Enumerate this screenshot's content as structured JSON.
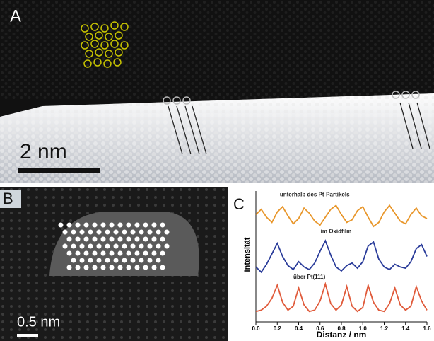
{
  "panels": {
    "a": {
      "label": "A",
      "scale_bar": "2 nm"
    },
    "b": {
      "label": "B",
      "scale_bar": "0.5 nm"
    }
  },
  "chart_data": {
    "type": "line",
    "panel_label": "C",
    "xlabel": "Distanz / nm",
    "ylabel": "Intensität",
    "x": [
      0,
      0.05,
      0.1,
      0.15,
      0.2,
      0.25,
      0.3,
      0.35,
      0.4,
      0.45,
      0.5,
      0.55,
      0.6,
      0.65,
      0.7,
      0.75,
      0.8,
      0.85,
      0.9,
      0.95,
      1.0,
      1.05,
      1.1,
      1.15,
      1.2,
      1.25,
      1.3,
      1.35,
      1.4,
      1.45,
      1.5,
      1.55,
      1.6
    ],
    "xlim": [
      0,
      1.6
    ],
    "xticks": [
      {
        "value": 0,
        "label": "0.0"
      },
      0.2,
      0.4,
      0.6,
      0.8,
      {
        "value": 1,
        "label": "1.0"
      },
      1.2,
      1.4,
      1.6
    ],
    "ylim": [
      0,
      10
    ],
    "series": [
      {
        "name": "unterhalb des Pt-Partikels",
        "color": "#e8962a",
        "values": [
          8.2,
          8.6,
          8.0,
          7.6,
          8.4,
          8.8,
          8.1,
          7.5,
          7.9,
          8.7,
          8.3,
          7.7,
          7.4,
          8.0,
          8.6,
          8.9,
          8.2,
          7.6,
          7.8,
          8.5,
          8.8,
          8.0,
          7.3,
          7.6,
          8.4,
          8.9,
          8.3,
          7.7,
          7.5,
          8.2,
          8.7,
          8.1,
          7.9
        ]
      },
      {
        "name": "im Oxidfilm",
        "color": "#2a3c9a",
        "values": [
          4.2,
          3.8,
          4.4,
          5.2,
          6.0,
          5.0,
          4.3,
          4.0,
          4.6,
          4.2,
          4.0,
          4.5,
          5.4,
          6.2,
          5.1,
          4.2,
          3.9,
          4.3,
          4.5,
          4.1,
          4.6,
          5.8,
          6.1,
          4.8,
          4.2,
          4.0,
          4.4,
          4.2,
          4.1,
          4.6,
          5.6,
          5.9,
          5.0
        ]
      },
      {
        "name": "über Pt(111)",
        "color": "#e05a3a",
        "values": [
          0.8,
          0.9,
          1.2,
          1.8,
          2.8,
          1.5,
          0.9,
          1.2,
          2.6,
          1.3,
          0.8,
          0.9,
          1.6,
          2.9,
          1.4,
          0.9,
          1.3,
          2.7,
          1.2,
          0.8,
          1.1,
          2.8,
          1.5,
          0.9,
          0.8,
          1.4,
          2.6,
          1.3,
          0.9,
          1.2,
          2.7,
          1.6,
          0.9
        ]
      }
    ]
  }
}
